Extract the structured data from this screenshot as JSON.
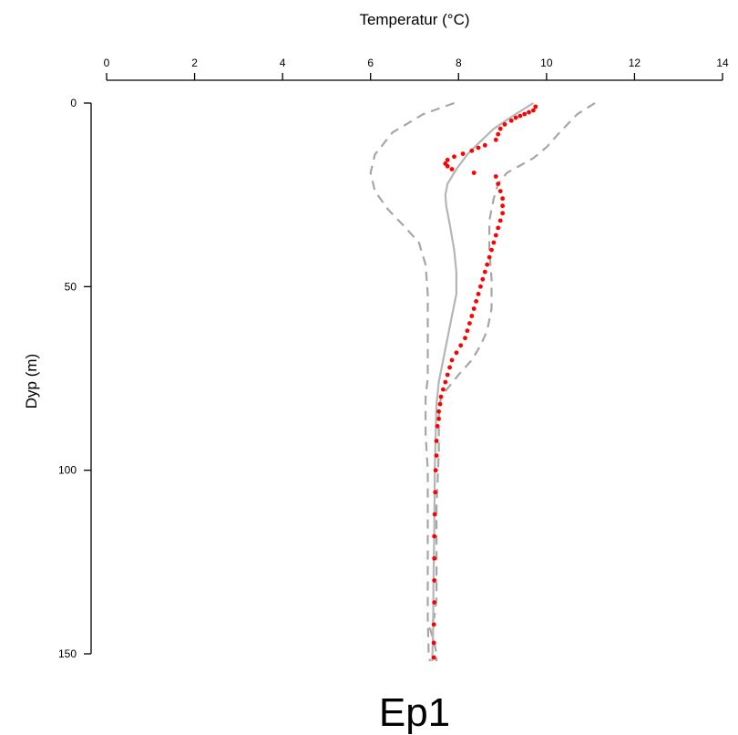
{
  "chart_data": {
    "type": "scatter",
    "title": "Ep1",
    "xlabel": "Temperatur (°C)",
    "ylabel": "Dyp (m)",
    "x_axis_position": "top",
    "y_axis_inverted": true,
    "xlim": [
      0,
      14
    ],
    "ylim": [
      0,
      150
    ],
    "x_ticks": [
      0,
      2,
      4,
      6,
      8,
      10,
      12,
      14
    ],
    "y_ticks": [
      0,
      50,
      100,
      150
    ],
    "grid": false,
    "legend": "none",
    "colors": {
      "observed": "#ff0000",
      "mean": "#b5b5b5",
      "bounds": "#a6a6a6"
    },
    "series": [
      {
        "style": "points",
        "color": "#ff0000",
        "points": [
          [
            9.75,
            1.0
          ],
          [
            9.7,
            2.0
          ],
          [
            9.6,
            2.5
          ],
          [
            9.5,
            3.0
          ],
          [
            9.4,
            3.5
          ],
          [
            9.3,
            4.0
          ],
          [
            9.2,
            4.8
          ],
          [
            9.05,
            5.8
          ],
          [
            8.95,
            7.0
          ],
          [
            8.9,
            8.5
          ],
          [
            8.85,
            10.0
          ],
          [
            8.6,
            11.5
          ],
          [
            8.45,
            12.2
          ],
          [
            8.3,
            13.0
          ],
          [
            8.1,
            13.8
          ],
          [
            7.9,
            14.6
          ],
          [
            7.75,
            15.5
          ],
          [
            7.7,
            16.5
          ],
          [
            7.75,
            17.2
          ],
          [
            7.85,
            18.0
          ],
          [
            8.35,
            19.0
          ],
          [
            8.85,
            20.0
          ],
          [
            8.9,
            22.0
          ],
          [
            8.95,
            24.0
          ],
          [
            9.0,
            26.0
          ],
          [
            9.0,
            28.0
          ],
          [
            9.0,
            30.0
          ],
          [
            8.95,
            32.0
          ],
          [
            8.9,
            34.0
          ],
          [
            8.85,
            36.0
          ],
          [
            8.8,
            38.0
          ],
          [
            8.75,
            40.0
          ],
          [
            8.7,
            42.0
          ],
          [
            8.65,
            44.0
          ],
          [
            8.6,
            46.0
          ],
          [
            8.55,
            48.0
          ],
          [
            8.5,
            50.0
          ],
          [
            8.45,
            52.0
          ],
          [
            8.4,
            54.0
          ],
          [
            8.35,
            56.0
          ],
          [
            8.3,
            58.0
          ],
          [
            8.25,
            60.0
          ],
          [
            8.2,
            62.0
          ],
          [
            8.15,
            64.0
          ],
          [
            8.05,
            66.0
          ],
          [
            7.95,
            68.0
          ],
          [
            7.85,
            70.0
          ],
          [
            7.8,
            72.0
          ],
          [
            7.75,
            74.0
          ],
          [
            7.7,
            76.0
          ],
          [
            7.65,
            78.0
          ],
          [
            7.6,
            80.0
          ],
          [
            7.58,
            82.0
          ],
          [
            7.55,
            84.0
          ],
          [
            7.55,
            86.0
          ],
          [
            7.52,
            88.0
          ],
          [
            7.5,
            92.0
          ],
          [
            7.5,
            96.0
          ],
          [
            7.48,
            100.0
          ],
          [
            7.47,
            106.0
          ],
          [
            7.46,
            112.0
          ],
          [
            7.45,
            118.0
          ],
          [
            7.45,
            124.0
          ],
          [
            7.45,
            130.0
          ],
          [
            7.45,
            136.0
          ],
          [
            7.44,
            142.0
          ],
          [
            7.44,
            147.0
          ],
          [
            7.44,
            151.0
          ]
        ]
      },
      {
        "style": "solid-line",
        "color": "#b5b5b5",
        "points": [
          [
            9.7,
            0.0
          ],
          [
            9.3,
            3.0
          ],
          [
            8.8,
            7.0
          ],
          [
            8.45,
            11.0
          ],
          [
            8.2,
            14.0
          ],
          [
            7.95,
            18.0
          ],
          [
            7.75,
            22.0
          ],
          [
            7.7,
            25.0
          ],
          [
            7.72,
            28.0
          ],
          [
            7.8,
            33.0
          ],
          [
            7.9,
            40.0
          ],
          [
            7.95,
            46.0
          ],
          [
            7.95,
            52.0
          ],
          [
            7.85,
            58.0
          ],
          [
            7.75,
            64.0
          ],
          [
            7.65,
            70.0
          ],
          [
            7.55,
            76.0
          ],
          [
            7.5,
            82.0
          ],
          [
            7.48,
            90.0
          ],
          [
            7.46,
            100.0
          ],
          [
            7.45,
            115.0
          ],
          [
            7.43,
            130.0
          ],
          [
            7.42,
            145.0
          ],
          [
            7.4,
            152.0
          ]
        ]
      },
      {
        "style": "dashed-line",
        "color": "#a6a6a6",
        "points": [
          [
            7.9,
            0.0
          ],
          [
            7.2,
            3.0
          ],
          [
            6.5,
            8.0
          ],
          [
            6.1,
            14.0
          ],
          [
            6.0,
            19.0
          ],
          [
            6.1,
            24.0
          ],
          [
            6.4,
            29.0
          ],
          [
            6.8,
            34.0
          ],
          [
            7.1,
            38.0
          ],
          [
            7.25,
            44.0
          ],
          [
            7.3,
            52.0
          ],
          [
            7.3,
            60.0
          ],
          [
            7.3,
            68.0
          ],
          [
            7.3,
            75.0
          ],
          [
            7.25,
            80.0
          ],
          [
            7.25,
            90.0
          ],
          [
            7.3,
            100.0
          ],
          [
            7.3,
            115.0
          ],
          [
            7.3,
            130.0
          ],
          [
            7.3,
            140.0
          ],
          [
            7.32,
            150.0
          ],
          [
            7.35,
            152.0
          ]
        ]
      },
      {
        "style": "dashed-line",
        "color": "#a6a6a6",
        "points": [
          [
            11.1,
            0.0
          ],
          [
            10.7,
            3.0
          ],
          [
            10.3,
            8.0
          ],
          [
            10.0,
            12.0
          ],
          [
            9.7,
            15.0
          ],
          [
            9.4,
            17.0
          ],
          [
            9.1,
            19.0
          ],
          [
            8.9,
            22.0
          ],
          [
            8.8,
            26.0
          ],
          [
            8.7,
            32.0
          ],
          [
            8.7,
            40.0
          ],
          [
            8.75,
            48.0
          ],
          [
            8.75,
            56.0
          ],
          [
            8.65,
            62.0
          ],
          [
            8.5,
            66.0
          ],
          [
            8.3,
            70.0
          ],
          [
            8.0,
            74.0
          ],
          [
            7.8,
            77.0
          ],
          [
            7.6,
            80.0
          ],
          [
            7.55,
            85.0
          ],
          [
            7.55,
            95.0
          ],
          [
            7.5,
            110.0
          ],
          [
            7.5,
            125.0
          ],
          [
            7.5,
            135.0
          ],
          [
            7.45,
            140.0
          ],
          [
            7.35,
            143.0
          ],
          [
            7.45,
            147.0
          ],
          [
            7.5,
            150.0
          ],
          [
            7.5,
            152.0
          ]
        ]
      }
    ]
  }
}
